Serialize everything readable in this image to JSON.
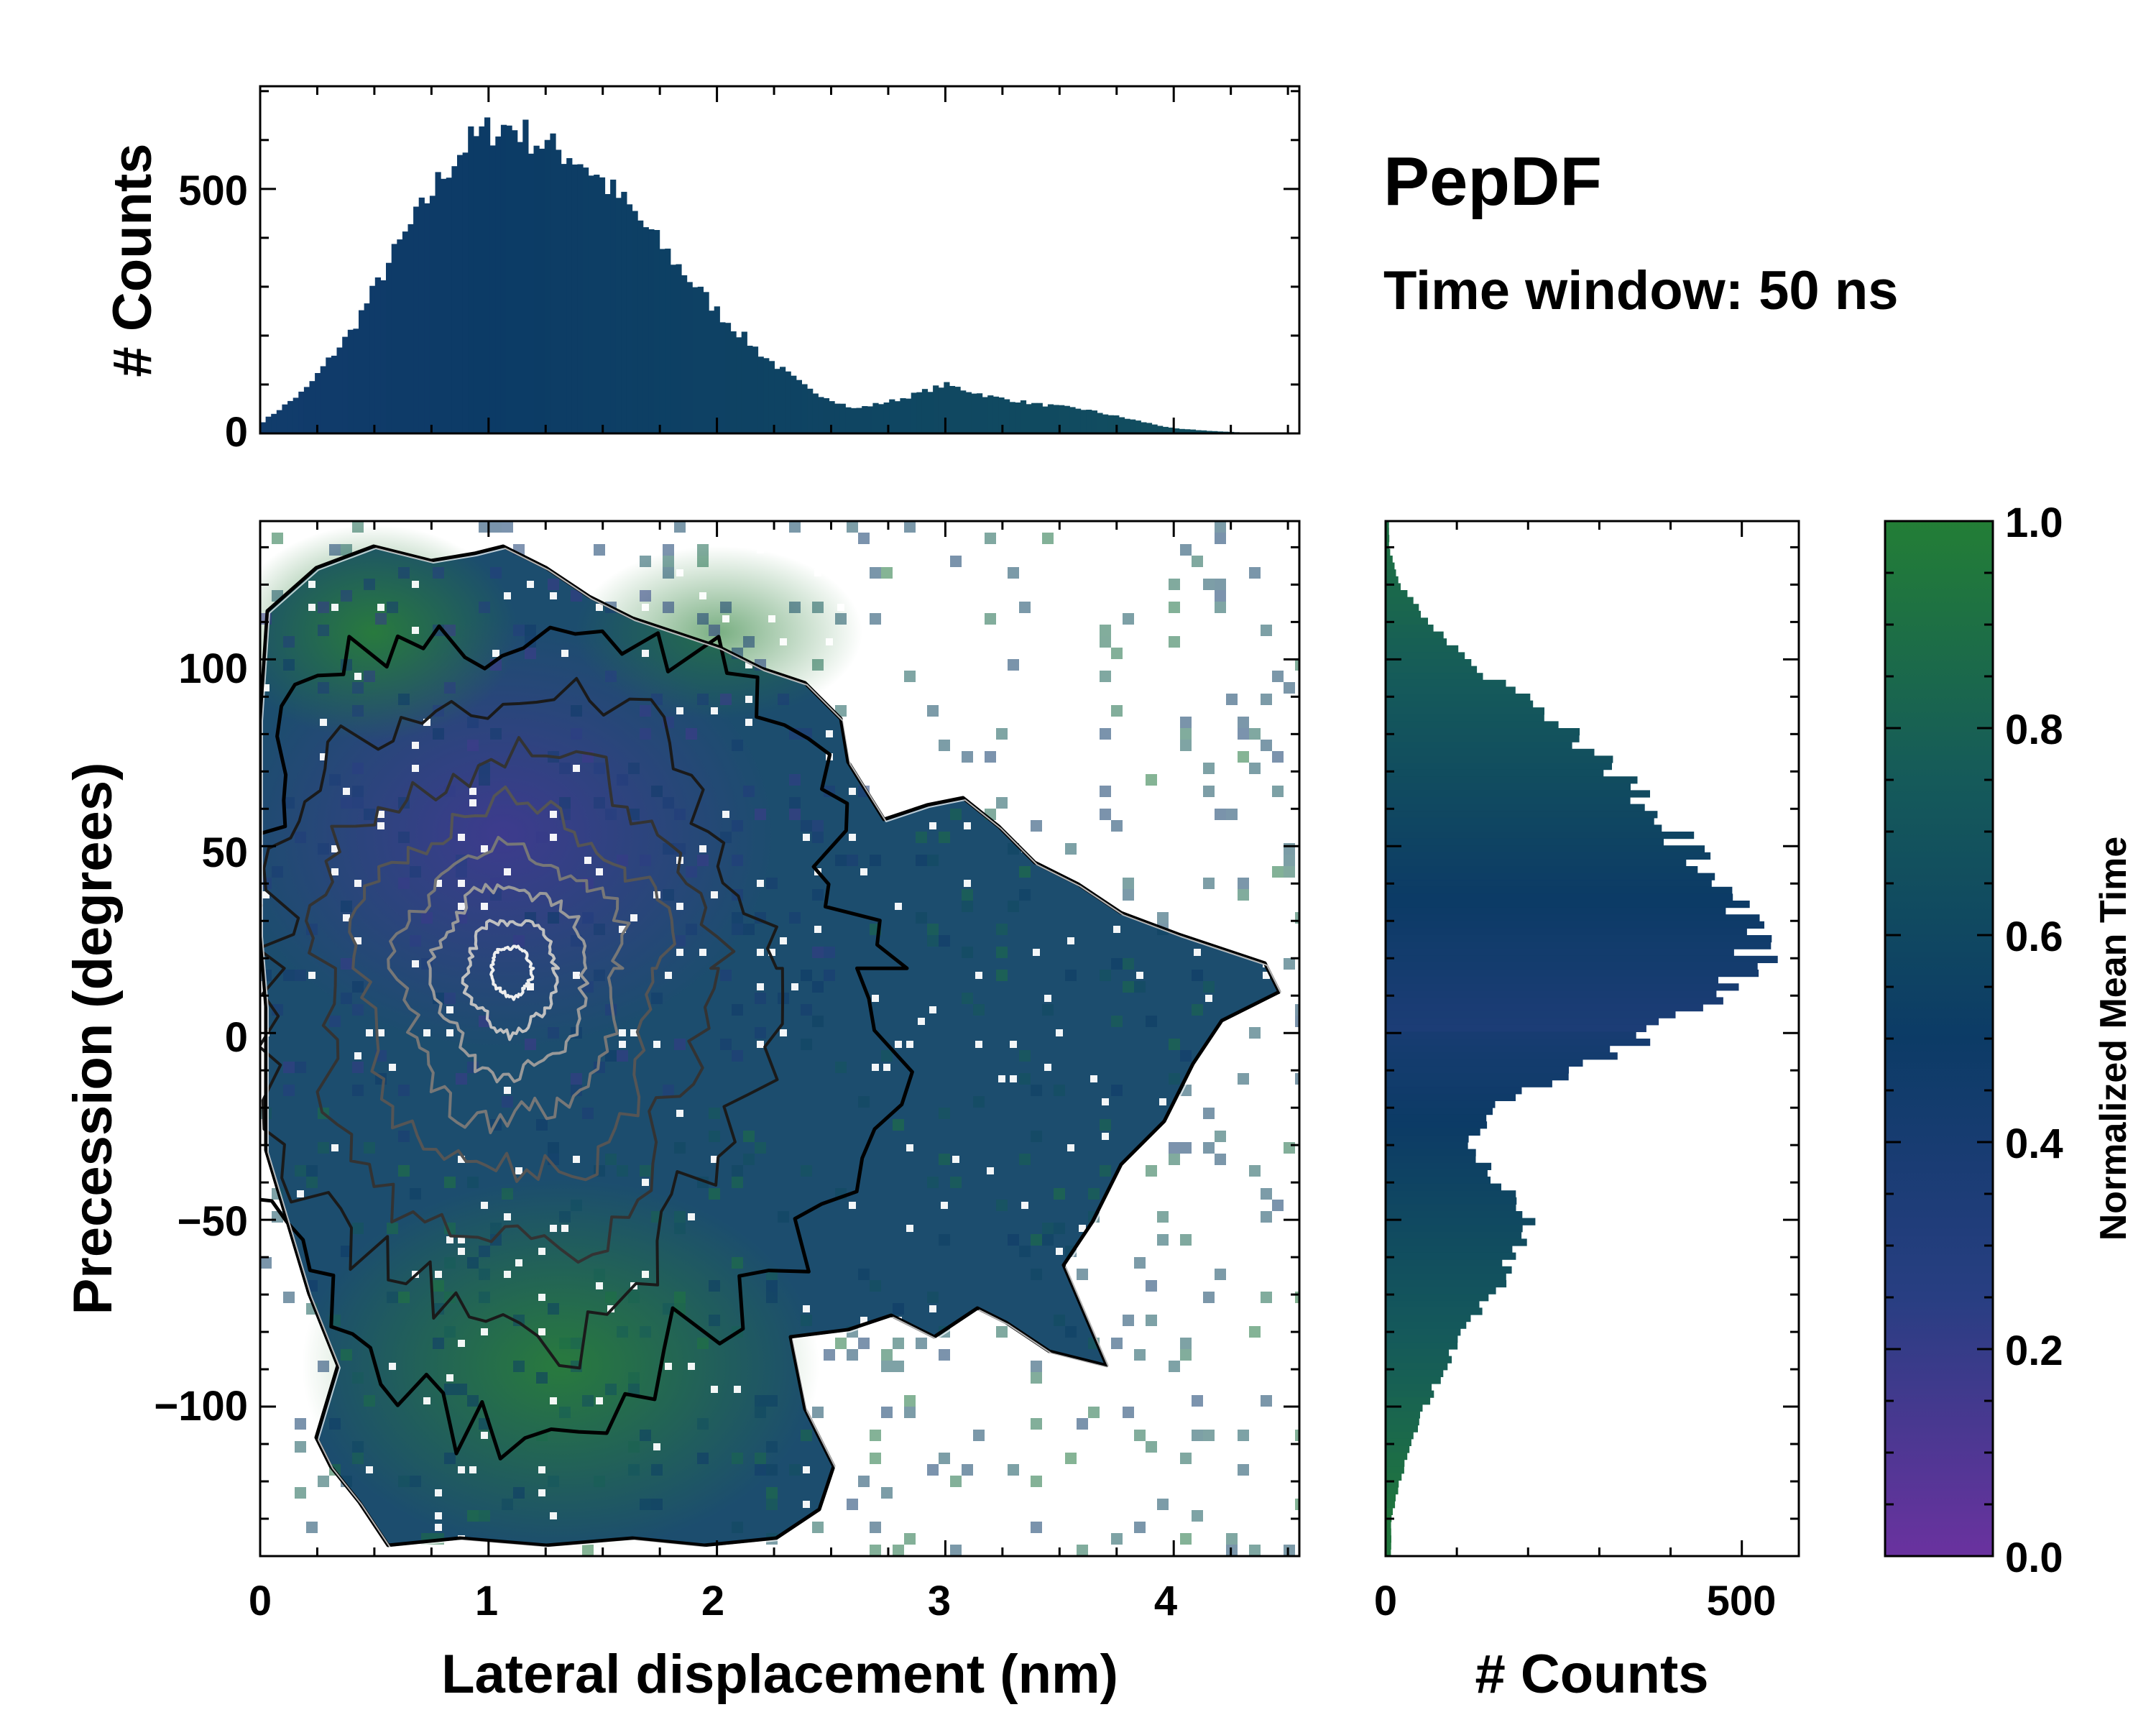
{
  "title": "PepDF",
  "subtitle": "Time window: 50 ns",
  "chart_data": {
    "type": "joint-heatmap",
    "main": {
      "type": "heatmap",
      "xlabel": "Lateral displacement (nm)",
      "ylabel": "Precession (degrees)",
      "xlim": [
        0,
        4.55
      ],
      "ylim": [
        -140,
        137
      ],
      "xticks": [
        0,
        1,
        2,
        3,
        4
      ],
      "xtick_labels": [
        "0",
        "1",
        "2",
        "3",
        "4"
      ],
      "yticks": [
        -100,
        -50,
        0,
        50,
        100
      ],
      "ytick_labels": [
        "−100",
        "−50",
        "0",
        "50",
        "100"
      ],
      "color_variable": "Normalized Mean Time",
      "contours": "density contours (white = highest, black = lowest)",
      "density_peak": {
        "x": 1.1,
        "y": 25
      }
    },
    "top_histogram": {
      "type": "bar",
      "ylabel": "# Counts",
      "ylim": [
        0,
        710
      ],
      "yticks": [
        0,
        500
      ],
      "ytick_labels": [
        "0",
        "500"
      ],
      "x": [
        0.0,
        0.2,
        0.4,
        0.6,
        0.8,
        0.9,
        1.0,
        1.1,
        1.2,
        1.4,
        1.6,
        1.8,
        2.0,
        2.2,
        2.4,
        2.6,
        2.8,
        3.0,
        3.2,
        3.4,
        3.6,
        3.8,
        4.0,
        4.2,
        4.4
      ],
      "values": [
        20,
        90,
        210,
        380,
        530,
        590,
        620,
        630,
        600,
        560,
        470,
        360,
        250,
        160,
        90,
        50,
        70,
        100,
        75,
        60,
        50,
        30,
        10,
        4,
        0
      ]
    },
    "right_histogram": {
      "type": "bar",
      "orientation": "horizontal",
      "xlabel": "# Counts",
      "xlim": [
        0,
        580
      ],
      "xticks": [
        0,
        500
      ],
      "xtick_labels": [
        "0",
        "500"
      ],
      "y": [
        130,
        120,
        110,
        100,
        90,
        80,
        70,
        60,
        50,
        40,
        30,
        20,
        10,
        0,
        -10,
        -20,
        -30,
        -40,
        -50,
        -60,
        -70,
        -80,
        -90,
        -100,
        -110,
        -120,
        -130
      ],
      "values": [
        5,
        20,
        60,
        110,
        190,
        260,
        320,
        370,
        420,
        460,
        500,
        520,
        470,
        380,
        260,
        150,
        120,
        160,
        200,
        180,
        150,
        110,
        80,
        55,
        35,
        20,
        8
      ]
    },
    "colorbar": {
      "label": "Normalized Mean Time",
      "range": [
        0.0,
        1.0
      ],
      "ticks": [
        "0.0",
        "0.2",
        "0.4",
        "0.6",
        "0.8",
        "1.0"
      ],
      "colors": [
        "#6a329f",
        "#283e82",
        "#0c3b66",
        "#155a5a",
        "#237e36"
      ]
    }
  }
}
